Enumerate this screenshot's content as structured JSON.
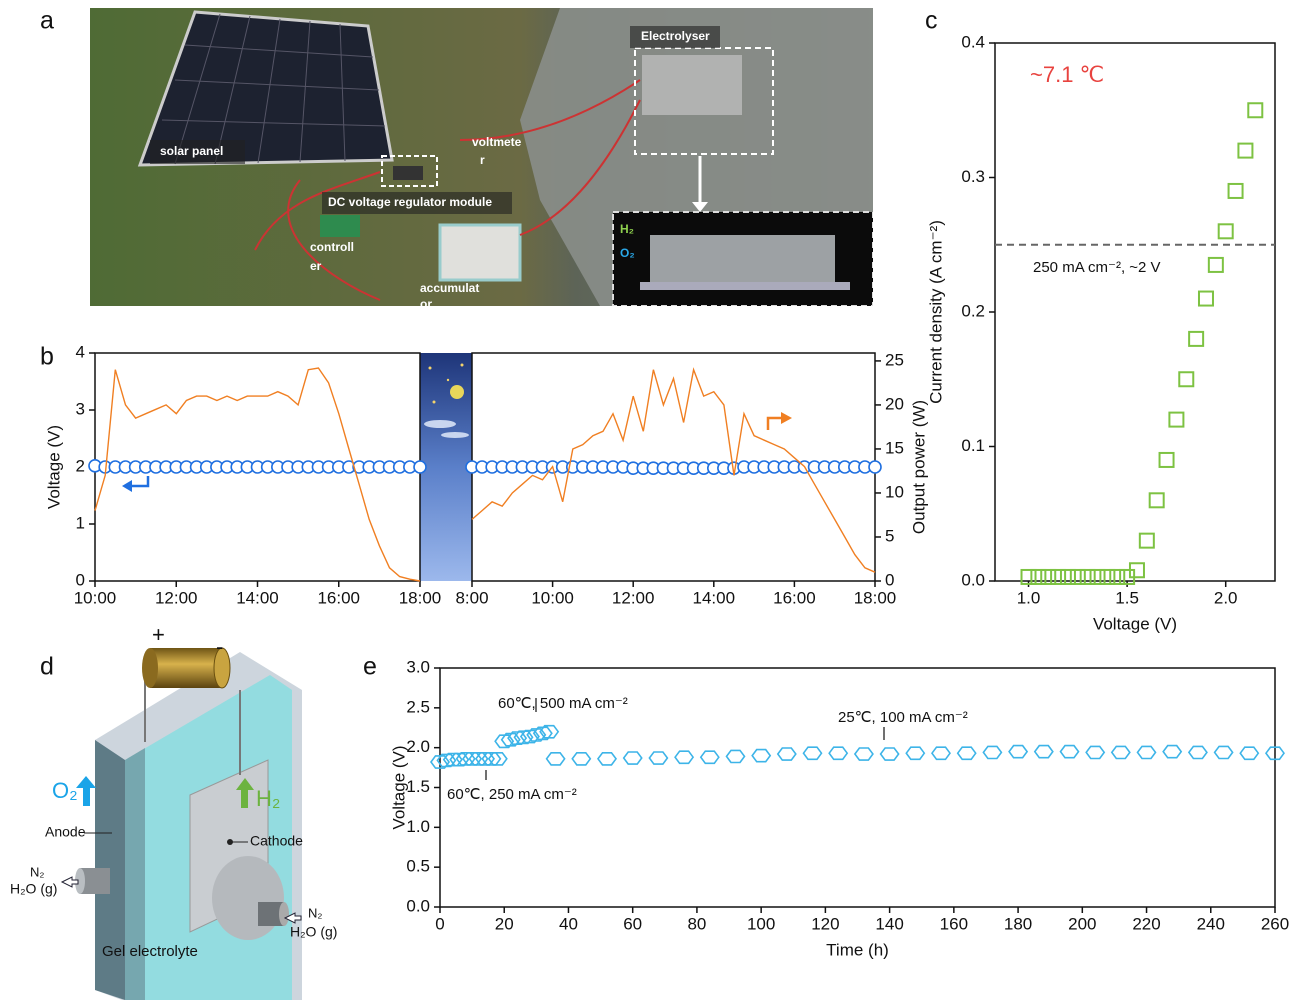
{
  "panel_labels": [
    "a",
    "b",
    "c",
    "d",
    "e"
  ],
  "photo": {
    "labels": [
      "Electrolyser",
      "solar panel",
      "voltmete",
      "r",
      "DC voltage regulator module",
      "controll",
      "er",
      "accumulat",
      "or",
      "H₂",
      "O₂"
    ]
  },
  "diagram": {
    "labels": [
      "+",
      "-",
      "O₂",
      "H₂",
      "Anode",
      "Cathode",
      "N₂",
      "H₂O (g)",
      "N₂",
      "H₂O (g)",
      "Gel electrolyte"
    ]
  },
  "chart_data": [
    {
      "type": "line",
      "ylabel": "Voltage (V)",
      "xlim": [
        10,
        18
      ],
      "xticks": [
        {
          "value": 10,
          "label": "10:00"
        },
        {
          "value": 12,
          "label": "12:00"
        },
        {
          "value": 14,
          "label": "14:00"
        },
        {
          "value": 16,
          "label": "16:00"
        },
        {
          "value": 18,
          "label": "18:00"
        }
      ],
      "ylim": [
        0,
        4
      ],
      "yticks": [
        0,
        1,
        2,
        3,
        4
      ],
      "y2lim": [
        0,
        25.9
      ],
      "x": [
        10,
        10.25,
        10.5,
        10.75,
        11,
        11.25,
        11.5,
        11.75,
        12,
        12.25,
        12.5,
        12.75,
        13,
        13.25,
        13.5,
        13.75,
        14,
        14.25,
        14.5,
        14.75,
        15,
        15.25,
        15.5,
        15.75,
        16,
        16.25,
        16.5,
        16.75,
        17,
        17.25,
        17.5,
        17.75,
        18
      ],
      "series": [
        {
          "color": "#1f6fe0",
          "marker": "circle",
          "values": [
            2.02,
            2.0,
            2.0,
            2.0,
            2.0,
            2.0,
            2.0,
            2.0,
            2.0,
            2.0,
            2.0,
            2.0,
            2.0,
            2.0,
            2.0,
            2.0,
            2.0,
            2.0,
            2.0,
            2.0,
            2.0,
            2.0,
            2.0,
            2.0,
            2.0,
            2.0,
            2.0,
            2.0,
            2.0,
            2.0,
            2.0,
            2.0,
            2.0
          ]
        },
        {
          "color": "#f07f22",
          "axis": "y2",
          "values": [
            8,
            12,
            24,
            20,
            18.5,
            19,
            19.5,
            20,
            19,
            20.5,
            21,
            21,
            20.5,
            21,
            20.5,
            21,
            21,
            21,
            21.5,
            21,
            20,
            24,
            24.2,
            22.5,
            19,
            15,
            11,
            7,
            4,
            1.5,
            0.5,
            0.2,
            0
          ]
        }
      ]
    },
    {
      "type": "line",
      "y2label": "Output power (W)",
      "xlim": [
        8,
        18
      ],
      "xticks": [
        {
          "value": 8,
          "label": "8:00"
        },
        {
          "value": 10,
          "label": "10:00"
        },
        {
          "value": 12,
          "label": "12:00"
        },
        {
          "value": 14,
          "label": "14:00"
        },
        {
          "value": 16,
          "label": "16:00"
        },
        {
          "value": 18,
          "label": "18:00"
        }
      ],
      "ylim": [
        0,
        4
      ],
      "y2lim": [
        0,
        25.9
      ],
      "y2ticks": [
        0,
        5,
        10,
        15,
        20,
        25
      ],
      "x": [
        8,
        8.25,
        8.5,
        8.75,
        9,
        9.25,
        9.5,
        9.75,
        10,
        10.25,
        10.5,
        10.75,
        11,
        11.25,
        11.5,
        11.75,
        12,
        12.25,
        12.5,
        12.75,
        13,
        13.25,
        13.5,
        13.75,
        14,
        14.25,
        14.5,
        14.75,
        15,
        15.25,
        15.5,
        15.75,
        16,
        16.25,
        16.5,
        16.75,
        17,
        17.25,
        17.5,
        17.75,
        18
      ],
      "series": [
        {
          "color": "#1f6fe0",
          "marker": "circle",
          "values": [
            2.0,
            2.0,
            2.0,
            2.0,
            2.0,
            2.0,
            2.0,
            2.0,
            2.0,
            2.0,
            2.0,
            2.0,
            2.0,
            2.0,
            2.0,
            2.0,
            1.98,
            1.98,
            1.98,
            1.98,
            1.98,
            1.98,
            1.98,
            1.98,
            1.98,
            1.98,
            1.98,
            2.0,
            2.0,
            2.0,
            2.0,
            2.0,
            2.0,
            2.0,
            2.0,
            2.0,
            2.0,
            2.0,
            2.0,
            2.0,
            2.0
          ]
        },
        {
          "color": "#f07f22",
          "axis": "y2",
          "values": [
            7,
            8,
            9,
            8.5,
            10,
            11,
            12,
            11.5,
            13,
            9,
            15,
            15.5,
            16.5,
            17,
            19,
            16,
            21,
            17,
            24,
            20,
            23,
            18,
            24,
            21,
            21.5,
            20,
            12,
            19,
            16.5,
            16,
            15.5,
            15,
            14,
            13,
            11,
            9,
            7,
            5,
            3,
            1.5,
            1
          ]
        }
      ]
    },
    {
      "type": "scatter",
      "xlabel": "Voltage (V)",
      "ylabel": "Current density (A cm⁻²)",
      "annotations": [
        "~7.1 ℃",
        "250 mA cm⁻², ~2 V"
      ],
      "hline": 0.25,
      "xlim": [
        0.83,
        2.25
      ],
      "xticks": [
        {
          "value": 1,
          "label": "1.0"
        },
        {
          "value": 1.5,
          "label": "1.5"
        },
        {
          "value": 2,
          "label": "2.0"
        }
      ],
      "ylim": [
        0,
        0.4
      ],
      "yticks": [
        {
          "value": 0,
          "label": "0.0"
        },
        0.1,
        0.2,
        0.3,
        0.4
      ],
      "x": [
        1.0,
        1.05,
        1.1,
        1.15,
        1.2,
        1.25,
        1.3,
        1.35,
        1.4,
        1.45,
        1.5,
        1.55,
        1.6,
        1.65,
        1.7,
        1.75,
        1.8,
        1.85,
        1.9,
        1.95,
        2.0,
        2.05,
        2.1,
        2.15
      ],
      "series": [
        {
          "color": "#7dc242",
          "marker": "square",
          "values": [
            0.003,
            0.003,
            0.003,
            0.003,
            0.003,
            0.003,
            0.003,
            0.003,
            0.003,
            0.003,
            0.003,
            0.008,
            0.03,
            0.06,
            0.09,
            0.12,
            0.15,
            0.18,
            0.21,
            0.235,
            0.26,
            0.29,
            0.32,
            0.35
          ]
        }
      ]
    },
    {
      "type": "scatter",
      "xlabel": "Time (h)",
      "ylabel": "Voltage (V)",
      "annotations": [
        "60℃, 500 mA cm⁻²",
        "60℃, 250 mA cm⁻²",
        "25℃, 100 mA cm⁻²"
      ],
      "xlim": [
        0,
        260
      ],
      "xticks": [
        0,
        20,
        40,
        60,
        80,
        100,
        120,
        140,
        160,
        180,
        200,
        220,
        240,
        260
      ],
      "ylim": [
        0,
        3
      ],
      "yticks": [
        {
          "value": 0,
          "label": "0.0"
        },
        0.5,
        {
          "value": 1,
          "label": "1.0"
        },
        1.5,
        {
          "value": 2,
          "label": "2.0"
        },
        2.5,
        {
          "value": 3,
          "label": "3.0"
        }
      ],
      "x": [
        0,
        2,
        4,
        6,
        8,
        10,
        12,
        14,
        16,
        18,
        20,
        22,
        24,
        26,
        28,
        30,
        32,
        34,
        36,
        44,
        52,
        60,
        68,
        76,
        84,
        92,
        100,
        108,
        116,
        124,
        132,
        140,
        148,
        156,
        164,
        172,
        180,
        188,
        196,
        204,
        212,
        220,
        228,
        236,
        244,
        252,
        260
      ],
      "series": [
        {
          "color": "#3db4e8",
          "marker": "hexagon",
          "values": [
            1.82,
            1.84,
            1.85,
            1.85,
            1.86,
            1.86,
            1.86,
            1.86,
            1.86,
            1.86,
            2.08,
            2.1,
            2.12,
            2.13,
            2.14,
            2.16,
            2.18,
            2.2,
            1.86,
            1.86,
            1.86,
            1.87,
            1.87,
            1.88,
            1.88,
            1.89,
            1.9,
            1.92,
            1.93,
            1.93,
            1.92,
            1.92,
            1.93,
            1.93,
            1.93,
            1.94,
            1.95,
            1.95,
            1.95,
            1.94,
            1.94,
            1.94,
            1.95,
            1.94,
            1.94,
            1.93,
            1.93
          ]
        }
      ]
    }
  ]
}
